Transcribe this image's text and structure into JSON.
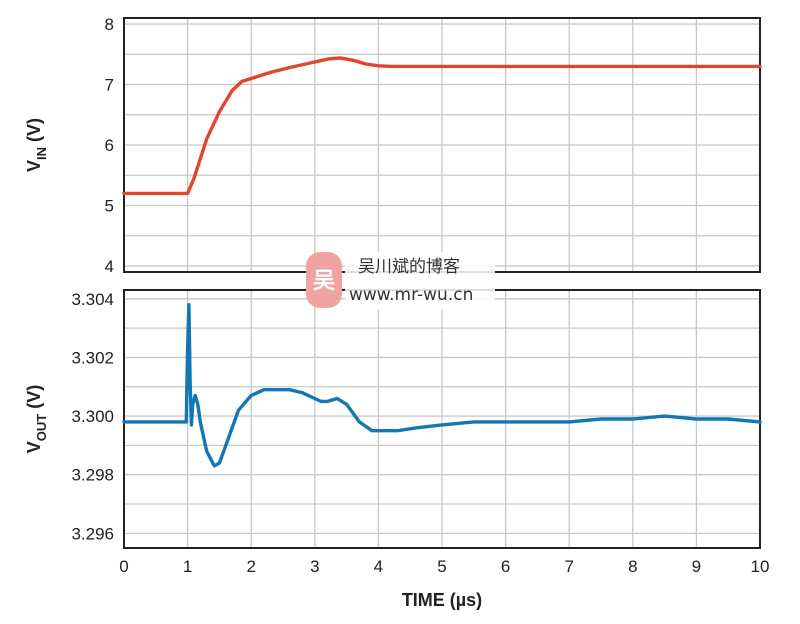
{
  "chart_data": [
    {
      "type": "line",
      "ylabel": {
        "main": "V",
        "sub": "IN",
        "unit": " (V)"
      },
      "xlim": [
        0,
        10
      ],
      "ylim": [
        3.9,
        8.1
      ],
      "yticks": [
        "4",
        "5",
        "6",
        "7",
        "8"
      ],
      "grid": true,
      "color": "#e0452e",
      "series": [
        {
          "x": [
            0,
            1.0,
            1.1,
            1.3,
            1.5,
            1.7,
            1.85,
            2.0,
            2.3,
            2.6,
            2.9,
            3.2,
            3.4,
            3.6,
            3.8,
            4.0,
            4.2,
            4.5,
            10
          ],
          "values": [
            5.2,
            5.2,
            5.45,
            6.1,
            6.55,
            6.9,
            7.05,
            7.1,
            7.2,
            7.28,
            7.35,
            7.42,
            7.44,
            7.4,
            7.34,
            7.31,
            7.3,
            7.3,
            7.3
          ]
        }
      ]
    },
    {
      "type": "line",
      "ylabel": {
        "main": "V",
        "sub": "OUT",
        "unit": " (V)"
      },
      "xlim": [
        0,
        10
      ],
      "ylim": [
        3.2955,
        3.3043
      ],
      "yticks": [
        "3.296",
        "3.298",
        "3.300",
        "3.302",
        "3.304"
      ],
      "grid": true,
      "color": "#1476b3",
      "series": [
        {
          "x": [
            0,
            0.98,
            1.0,
            1.02,
            1.04,
            1.06,
            1.08,
            1.12,
            1.16,
            1.2,
            1.3,
            1.42,
            1.5,
            1.6,
            1.8,
            2.0,
            2.2,
            2.4,
            2.6,
            2.8,
            3.0,
            3.1,
            3.2,
            3.35,
            3.5,
            3.7,
            3.9,
            4.1,
            4.3,
            4.6,
            5.0,
            5.5,
            6.0,
            6.5,
            7.0,
            7.5,
            8.0,
            8.5,
            9.0,
            9.5,
            10
          ],
          "values": [
            3.2998,
            3.2998,
            3.3023,
            3.3038,
            3.3012,
            3.2997,
            3.3004,
            3.3007,
            3.3004,
            3.2998,
            3.2988,
            3.2983,
            3.2984,
            3.299,
            3.3002,
            3.3007,
            3.3009,
            3.3009,
            3.3009,
            3.3008,
            3.3006,
            3.3005,
            3.3005,
            3.3006,
            3.3004,
            3.2998,
            3.2995,
            3.2995,
            3.2995,
            3.2996,
            3.2997,
            3.2998,
            3.2998,
            3.2998,
            3.2998,
            3.2999,
            3.2999,
            3.3,
            3.2999,
            3.2999,
            3.2998
          ]
        }
      ]
    }
  ],
  "xaxis": {
    "label": "TIME (µs)",
    "ticks": [
      "0",
      "1",
      "2",
      "3",
      "4",
      "5",
      "6",
      "7",
      "8",
      "9",
      "10"
    ]
  },
  "watermark": {
    "title": "吴川斌的博客",
    "url": "www.mr-wu.cn",
    "logo_glyph": "吴",
    "logo_color": "#f0a3a3"
  }
}
